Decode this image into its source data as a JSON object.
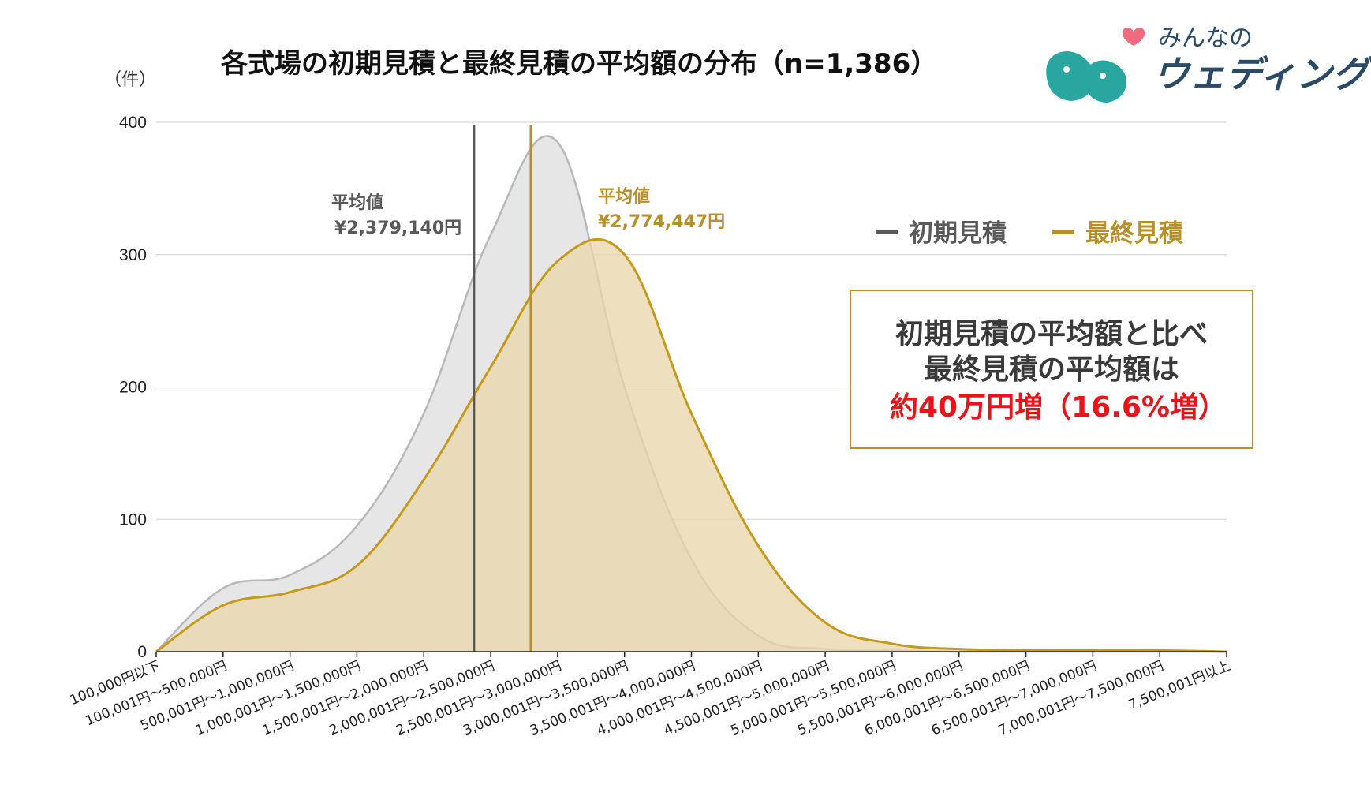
{
  "chart_data": {
    "type": "area",
    "title": "各式場の初期見積と最終見積の平均額の分布（n=1,386）",
    "ylabel": "（件）",
    "xlabel": "",
    "ylim": [
      0,
      400
    ],
    "yticks": [
      0,
      100,
      200,
      300,
      400
    ],
    "grid": true,
    "categories": [
      "100,000円以下",
      "100,001円〜500,000円",
      "500,001円〜1,000,000円",
      "1,000,001円〜1,500,000円",
      "1,500,001円〜2,000,000円",
      "2,000,001円〜2,500,000円",
      "2,500,001円〜3,000,000円",
      "3,000,001円〜3,500,000円",
      "3,500,001円〜4,000,000円",
      "4,000,001円〜4,500,000円",
      "4,500,001円〜5,000,000円",
      "5,000,001円〜5,500,000円",
      "5,500,001円〜6,000,000円",
      "6,000,001円〜6,500,000円",
      "6,500,001円〜7,000,000円",
      "7,000,001円〜7,500,000円",
      "7,500,001円以上"
    ],
    "series": [
      {
        "name": "初期見積",
        "color": "#595959",
        "fill": "#e6e6e6",
        "line": "#b8b8b8",
        "values": [
          0,
          48,
          58,
          95,
          180,
          315,
          385,
          200,
          70,
          12,
          2,
          1,
          0,
          0,
          0,
          0,
          0
        ]
      },
      {
        "name": "最終見積",
        "color": "#b8902a",
        "fill": "#e9d7ad",
        "line": "#c49a1c",
        "values": [
          0,
          35,
          45,
          65,
          130,
          215,
          295,
          300,
          180,
          80,
          22,
          6,
          2,
          1,
          1,
          1,
          0
        ]
      }
    ],
    "mean_lines": [
      {
        "series": "初期見積",
        "label": "平均値",
        "value_text": "¥2,379,140円",
        "x_index": 4.75,
        "color": "#595959"
      },
      {
        "series": "最終見積",
        "label": "平均値",
        "value_text": "¥2,774,447円",
        "x_index": 5.6,
        "color": "#b8902a"
      }
    ],
    "legend": {
      "placement": "top-right"
    },
    "callout": {
      "line1": "初期見積の平均額と比べ",
      "line2": "最終見積の平均額は",
      "line3": "約40万円増（16.6%増）",
      "text_color": "#3a3a3a",
      "highlight_color": "#e8141a",
      "border_color": "#b8902a"
    }
  },
  "logo": {
    "small_text": "みんなの",
    "big_text": "ウェディング",
    "bird_color": "#2aa6a0",
    "heart_color": "#ef6b7e"
  }
}
